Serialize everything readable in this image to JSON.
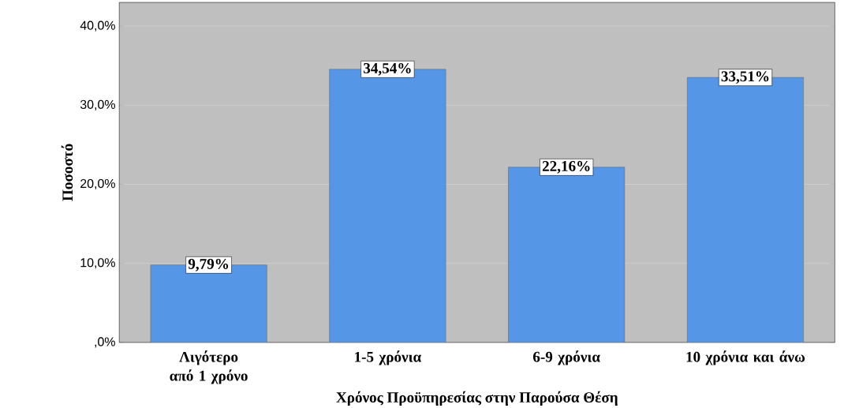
{
  "chart_data": {
    "type": "bar",
    "xlabel": "Χρόνος Προϋπηρεσίας στην Παρούσα Θέση",
    "ylabel": "Ποσοστό",
    "categories": [
      "Λιγότερο από 1 χρόνο",
      "1-5 χρόνια",
      "6-9 χρόνια",
      "10 χρόνια και άνω"
    ],
    "values": [
      9.79,
      34.54,
      22.16,
      33.51
    ],
    "value_labels": [
      "9,79%",
      "34,54%",
      "22,16%",
      "33,51%"
    ],
    "color": "#5596e6",
    "ylim": [
      0,
      43
    ],
    "yticks": [
      {
        "value": 0,
        "label": ",0%"
      },
      {
        "value": 10,
        "label": "10,0%"
      },
      {
        "value": 20,
        "label": "20,0%"
      },
      {
        "value": 30,
        "label": "30,0%"
      },
      {
        "value": 40,
        "label": "40,0%"
      }
    ],
    "grid": "y"
  }
}
